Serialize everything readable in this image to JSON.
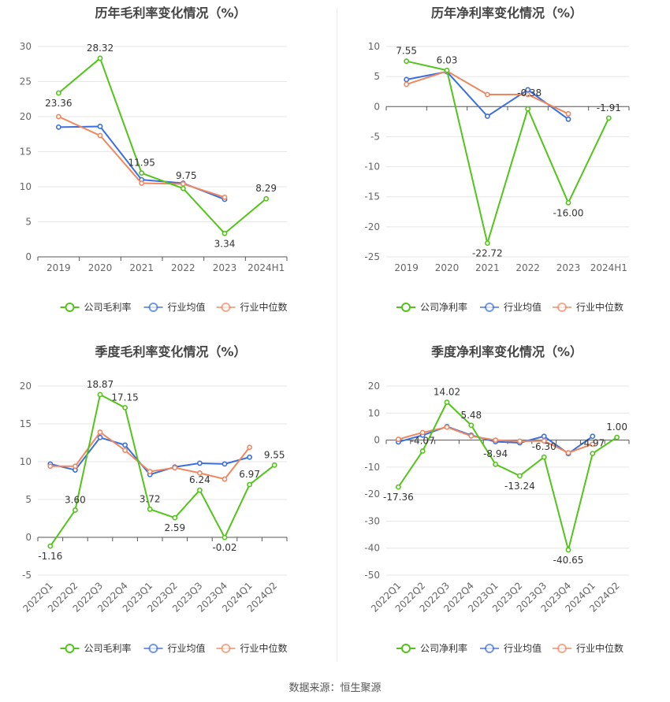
{
  "footer_text": "数据来源：恒生聚源",
  "colors": {
    "company": "#52c41a",
    "avg": "#3a6fe0",
    "median": "#f0875f"
  },
  "chart_data": [
    {
      "type": "line",
      "title": "历年毛利率变化情况（%）",
      "x": [
        "2019",
        "2020",
        "2021",
        "2022",
        "2023",
        "2024H1"
      ],
      "ylim": [
        0,
        30
      ],
      "yticks": [
        0,
        5,
        10,
        15,
        20,
        25,
        30
      ],
      "grid": true,
      "legend_position": "bottom",
      "series": [
        {
          "name": "公司毛利率",
          "values": [
            23.36,
            28.32,
            11.95,
            9.75,
            3.34,
            8.29
          ],
          "labels": [
            "23.36",
            "28.32",
            "11.95",
            "9.75",
            "3.34",
            "8.29"
          ]
        },
        {
          "name": "行业均值",
          "values": [
            18.5,
            18.6,
            11.0,
            10.5,
            8.2,
            null
          ]
        },
        {
          "name": "行业中位数",
          "values": [
            20.0,
            17.3,
            10.5,
            10.4,
            8.5,
            null
          ]
        }
      ]
    },
    {
      "type": "line",
      "title": "历年净利率变化情况（%）",
      "x": [
        "2019",
        "2020",
        "2021",
        "2022",
        "2023",
        "2024H1"
      ],
      "ylim": [
        -25,
        10
      ],
      "yticks": [
        -25,
        -20,
        -15,
        -10,
        -5,
        0,
        5,
        10
      ],
      "grid": true,
      "legend_position": "bottom",
      "series": [
        {
          "name": "公司净利率",
          "values": [
            7.55,
            6.03,
            -22.72,
            -0.38,
            -16.0,
            -1.91
          ],
          "labels": [
            "7.55",
            "6.03",
            "-22.72",
            "-0.38",
            "-16.00",
            "-1.91"
          ]
        },
        {
          "name": "行业均值",
          "values": [
            4.5,
            5.8,
            -1.6,
            2.8,
            -2.1,
            null
          ]
        },
        {
          "name": "行业中位数",
          "values": [
            3.7,
            5.9,
            2.0,
            2.0,
            -1.2,
            null
          ]
        }
      ]
    },
    {
      "type": "line",
      "title": "季度毛利率变化情况（%）",
      "x": [
        "2022Q1",
        "2022Q2",
        "2022Q3",
        "2022Q4",
        "2023Q1",
        "2023Q2",
        "2023Q3",
        "2023Q4",
        "2024Q1",
        "2024Q2"
      ],
      "ylim": [
        -5,
        20
      ],
      "yticks": [
        -5,
        0,
        5,
        10,
        15,
        20
      ],
      "grid": true,
      "legend_position": "bottom",
      "series": [
        {
          "name": "公司毛利率",
          "values": [
            -1.16,
            3.6,
            18.87,
            17.15,
            3.72,
            2.59,
            6.24,
            -0.02,
            6.97,
            9.55
          ],
          "labels": [
            "-1.16",
            "3.60",
            "18.87",
            "17.15",
            "3.72",
            "2.59",
            "6.24",
            "-0.02",
            "6.97",
            "9.55"
          ]
        },
        {
          "name": "行业均值",
          "values": [
            9.7,
            8.9,
            13.2,
            12.2,
            8.3,
            9.3,
            9.8,
            9.7,
            10.6,
            null
          ]
        },
        {
          "name": "行业中位数",
          "values": [
            9.4,
            9.4,
            13.9,
            11.5,
            8.7,
            9.2,
            8.5,
            7.7,
            11.9,
            null
          ]
        }
      ]
    },
    {
      "type": "line",
      "title": "季度净利率变化情况（%）",
      "x": [
        "2022Q1",
        "2022Q2",
        "2022Q3",
        "2022Q4",
        "2023Q1",
        "2023Q2",
        "2023Q3",
        "2023Q4",
        "2024Q1",
        "2024Q2"
      ],
      "ylim": [
        -50,
        20
      ],
      "yticks": [
        -50,
        -40,
        -30,
        -20,
        -10,
        0,
        10,
        20
      ],
      "grid": true,
      "legend_position": "bottom",
      "series": [
        {
          "name": "公司净利率",
          "values": [
            -17.36,
            -4.07,
            14.02,
            5.48,
            -8.94,
            -13.24,
            -6.3,
            -40.65,
            -4.97,
            1.0
          ],
          "labels": [
            "-17.36",
            "-4.07",
            "14.02",
            "5.48",
            "-8.94",
            "-13.24",
            "-6.30",
            "-40.65",
            "-4.97",
            "1.00"
          ]
        },
        {
          "name": "行业均值",
          "values": [
            -0.7,
            1.8,
            5.0,
            1.8,
            -0.6,
            -1.0,
            1.4,
            -5.0,
            1.4,
            null
          ]
        },
        {
          "name": "行业中位数",
          "values": [
            0.3,
            2.8,
            4.8,
            1.5,
            0.0,
            -0.4,
            -0.3,
            -4.7,
            -1.5,
            null
          ]
        }
      ]
    }
  ]
}
